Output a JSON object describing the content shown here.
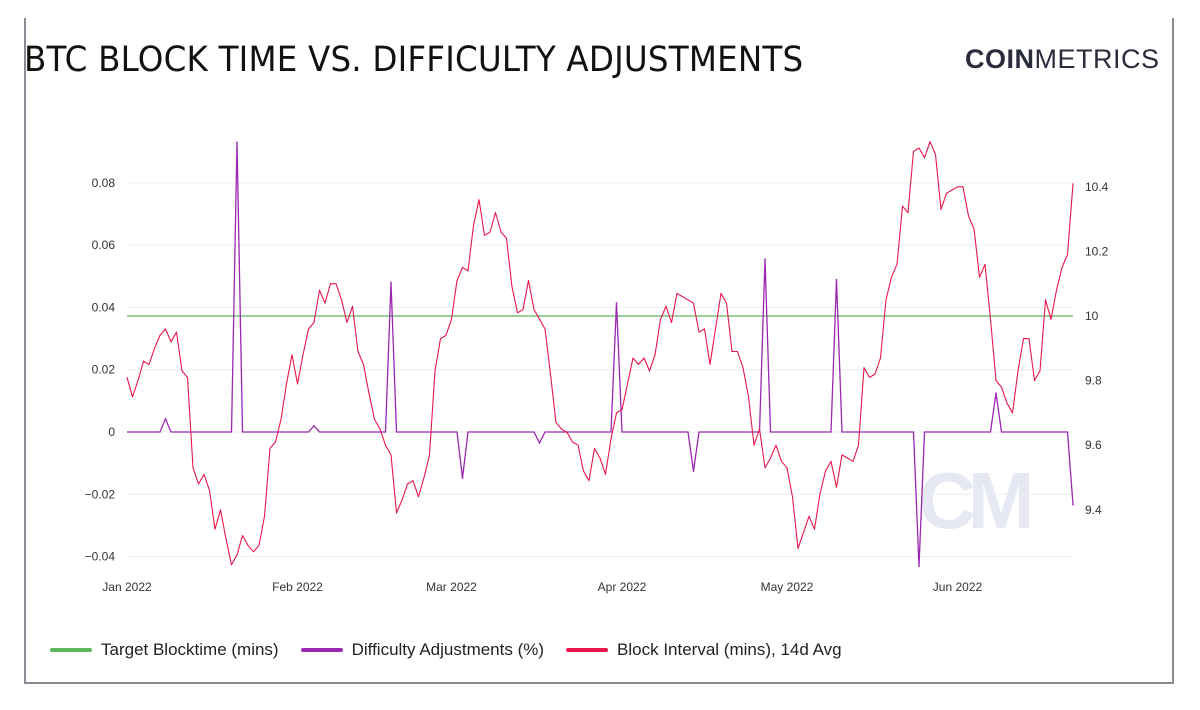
{
  "header": {
    "title": "BTC BLOCK TIME VS. DIFFICULTY ADJUSTMENTS",
    "logo_bold": "COIN",
    "logo_light": "METRICS",
    "watermark": "CM"
  },
  "colors": {
    "target": "#5cb85c",
    "difficulty": "#9b27b0",
    "interval": "#e8174b",
    "grid": "#eeeeee"
  },
  "chart_data": {
    "type": "line",
    "title": "BTC BLOCK TIME VS. DIFFICULTY ADJUSTMENTS",
    "x_start": "2022-01-01",
    "x_step": "1 day",
    "x_ticks": [
      "Jan 2022",
      "Feb 2022",
      "Mar 2022",
      "Apr 2022",
      "May 2022",
      "Jun 2022"
    ],
    "x_tick_days": [
      0,
      31,
      59,
      90,
      120,
      151
    ],
    "left_axis": {
      "ticks": [
        "0.08",
        "0.06",
        "0.04",
        "0.02",
        "0",
        "−0.02",
        "−0.04"
      ],
      "tick_values": [
        0.08,
        0.06,
        0.04,
        0.02,
        0,
        -0.02,
        -0.04
      ]
    },
    "right_axis": {
      "ticks": [
        "10.4",
        "10.2",
        "10",
        "9.8",
        "9.6",
        "9.4"
      ],
      "tick_values": [
        10.4,
        10.2,
        10,
        9.8,
        9.6,
        9.4
      ]
    },
    "grid": true,
    "legend_position": "bottom-left",
    "series": [
      {
        "name": "Target Blocktime (mins)",
        "axis": "right",
        "value": 10
      },
      {
        "name": "Difficulty Adjustments (%)",
        "axis": "left",
        "baseline": 0,
        "adjustments": [
          {
            "day": 7,
            "value": 0.0042
          },
          {
            "day": 20,
            "value": 0.093
          },
          {
            "day": 34,
            "value": 0.002
          },
          {
            "day": 48,
            "value": 0.048
          },
          {
            "day": 61,
            "value": -0.0148
          },
          {
            "day": 75,
            "value": -0.0035
          },
          {
            "day": 89,
            "value": 0.0414
          },
          {
            "day": 103,
            "value": -0.0126
          },
          {
            "day": 116,
            "value": 0.0555
          },
          {
            "day": 129,
            "value": 0.0489
          },
          {
            "day": 144,
            "value": -0.0431
          },
          {
            "day": 158,
            "value": 0.0125
          },
          {
            "day": 172,
            "value": -0.0233
          }
        ]
      },
      {
        "name": "Block Interval (mins), 14d Avg",
        "axis": "right",
        "values": [
          9.81,
          9.75,
          9.8,
          9.86,
          9.85,
          9.9,
          9.94,
          9.96,
          9.92,
          9.95,
          9.83,
          9.81,
          9.53,
          9.48,
          9.51,
          9.46,
          9.34,
          9.4,
          9.31,
          9.23,
          9.26,
          9.32,
          9.29,
          9.27,
          9.29,
          9.38,
          9.59,
          9.61,
          9.68,
          9.79,
          9.88,
          9.79,
          9.88,
          9.96,
          9.98,
          10.08,
          10.04,
          10.1,
          10.1,
          10.05,
          9.98,
          10.03,
          9.89,
          9.85,
          9.76,
          9.68,
          9.65,
          9.6,
          9.57,
          9.39,
          9.43,
          9.48,
          9.49,
          9.44,
          9.5,
          9.57,
          9.83,
          9.93,
          9.94,
          9.99,
          10.11,
          10.15,
          10.14,
          10.28,
          10.36,
          10.25,
          10.26,
          10.32,
          10.26,
          10.24,
          10.09,
          10.01,
          10.02,
          10.11,
          10.02,
          9.99,
          9.96,
          9.82,
          9.67,
          9.65,
          9.64,
          9.61,
          9.6,
          9.52,
          9.49,
          9.59,
          9.56,
          9.51,
          9.62,
          9.7,
          9.71,
          9.79,
          9.87,
          9.85,
          9.87,
          9.83,
          9.88,
          9.99,
          10.03,
          9.98,
          10.07,
          10.06,
          10.05,
          10.04,
          9.95,
          9.96,
          9.85,
          9.96,
          10.07,
          10.04,
          9.89,
          9.89,
          9.84,
          9.75,
          9.6,
          9.65,
          9.53,
          9.56,
          9.6,
          9.55,
          9.53,
          9.44,
          9.28,
          9.33,
          9.38,
          9.34,
          9.45,
          9.52,
          9.55,
          9.47,
          9.57,
          9.56,
          9.55,
          9.6,
          9.84,
          9.81,
          9.82,
          9.87,
          10.05,
          10.12,
          10.16,
          10.34,
          10.32,
          10.51,
          10.52,
          10.49,
          10.54,
          10.5,
          10.33,
          10.38,
          10.39,
          10.4,
          10.4,
          10.31,
          10.27,
          10.12,
          10.16,
          9.99,
          9.8,
          9.78,
          9.73,
          9.7,
          9.83,
          9.93,
          9.93,
          9.8,
          9.83,
          10.05,
          9.99,
          10.08,
          10.15,
          10.19,
          10.41
        ]
      }
    ]
  }
}
